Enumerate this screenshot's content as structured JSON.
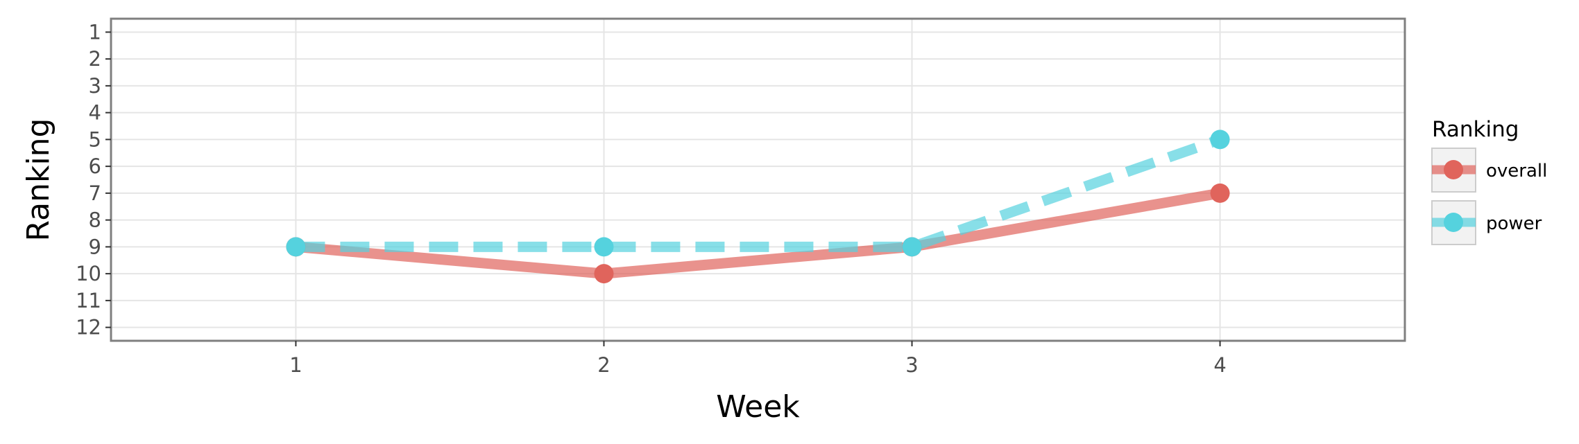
{
  "chart_data": {
    "type": "line",
    "xlabel": "Week",
    "ylabel": "Ranking",
    "x": [
      1,
      2,
      3,
      4
    ],
    "xticks": [
      "1",
      "2",
      "3",
      "4"
    ],
    "xlim": [
      0.4,
      4.6
    ],
    "yticks": [
      1,
      2,
      3,
      4,
      5,
      6,
      7,
      8,
      9,
      10,
      11,
      12
    ],
    "ylim": [
      12.5,
      0.5
    ],
    "y_reversed": true,
    "grid": true,
    "legend": {
      "title": "Ranking",
      "position": "right"
    },
    "series": [
      {
        "name": "overall",
        "values": [
          9,
          10,
          9,
          7
        ],
        "color": "#e0645c",
        "line_style": "solid"
      },
      {
        "name": "power",
        "values": [
          9,
          9,
          9,
          5
        ],
        "color": "#55d2de",
        "line_style": "dashed"
      }
    ]
  }
}
